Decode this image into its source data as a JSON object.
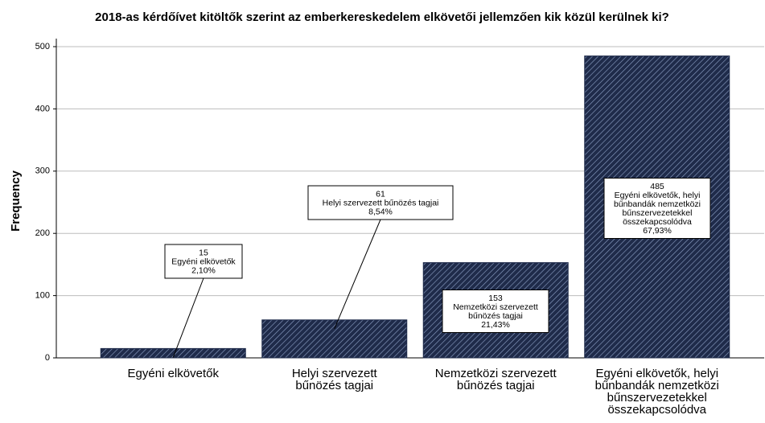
{
  "chart_data": {
    "type": "bar",
    "title": "2018-as kérdőívet kitöltők szerint az emberkereskedelem elkövetői jellemzően kik közül kerülnek ki?",
    "y_label": "Frequency",
    "categories": [
      "Egyéni elkövetők",
      "Helyi szervezett bűnözés tagjai",
      "Nemzetközi szervezett bűnözés tagjai",
      "Egyéni elkövetők, helyi bűnbandák nemzetközi bűnszervezetekkel összekapcsolódva"
    ],
    "values": [
      15,
      61,
      153,
      485
    ],
    "percents": [
      2.1,
      8.54,
      21.43,
      67.93
    ],
    "percent_labels": [
      "2,10%",
      "8,54%",
      "21,43%",
      "67,93%"
    ],
    "color": "#1f2b4a",
    "ylim": [
      0,
      500
    ],
    "yticks": [
      0,
      100,
      200,
      300,
      400,
      500
    ],
    "grid": true
  }
}
